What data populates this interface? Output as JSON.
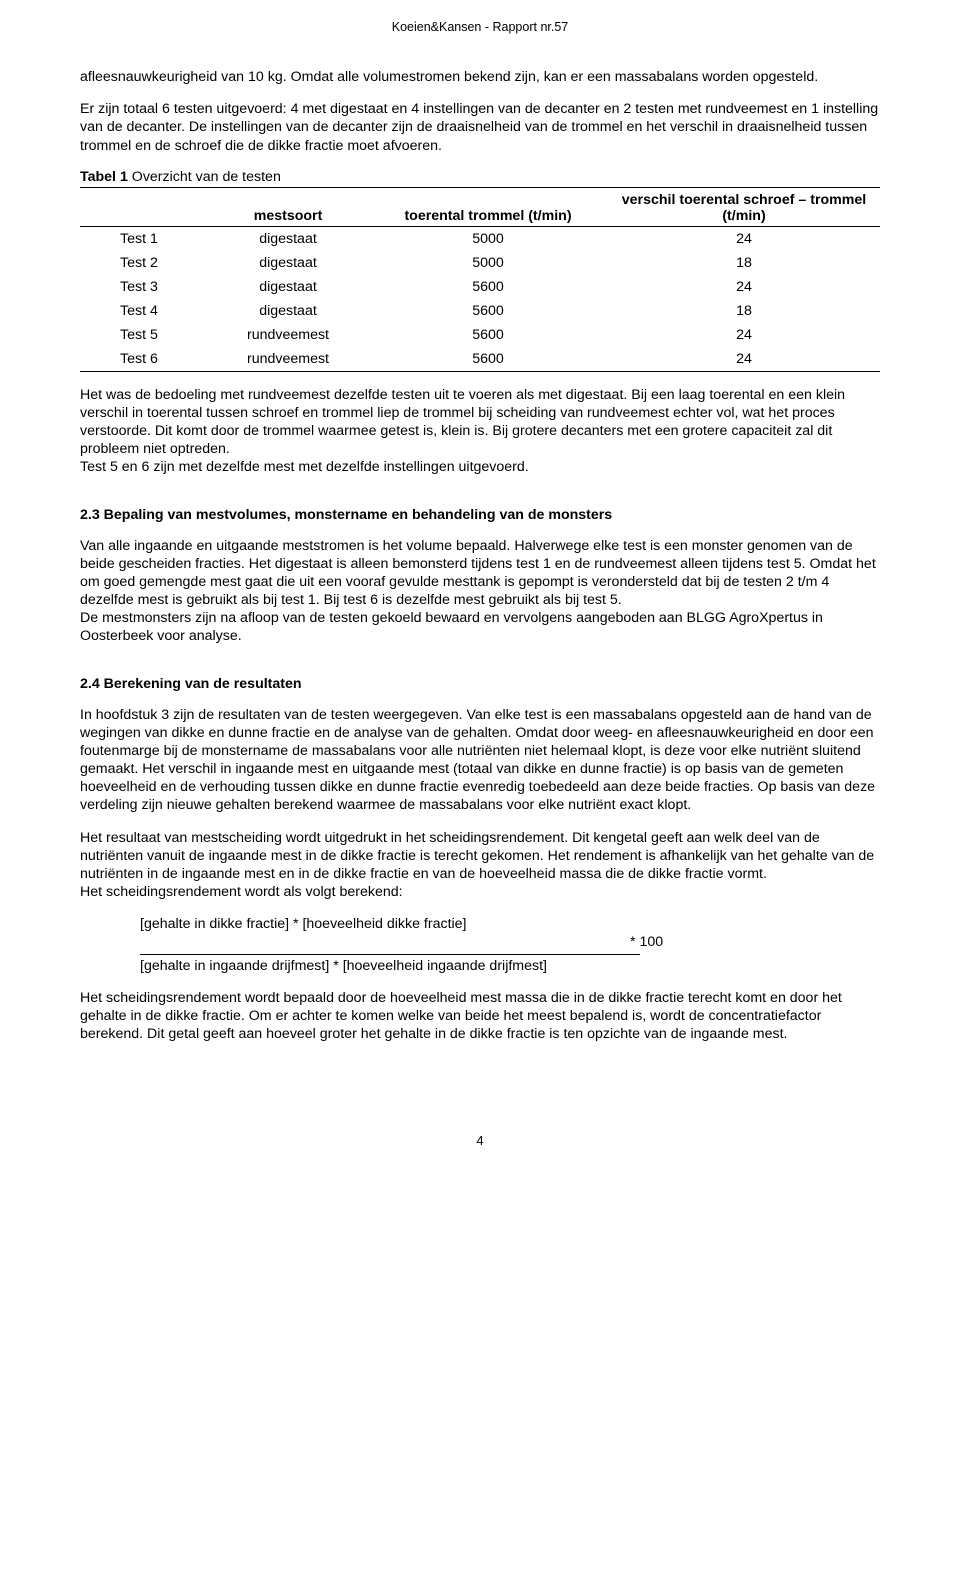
{
  "header": "Koeien&Kansen - Rapport nr.57",
  "para1": "afleesnauwkeurigheid van 10 kg. Omdat alle volumestromen bekend zijn, kan er een massabalans worden opgesteld.",
  "para2": "Er zijn totaal 6 testen uitgevoerd: 4 met digestaat en 4 instellingen van de decanter en 2 testen met rundveemest en 1 instelling van de decanter. De instellingen van de decanter zijn de draaisnelheid van de trommel en het verschil in draaisnelheid tussen trommel en de schroef die de dikke fractie moet afvoeren.",
  "table_caption_bold": "Tabel 1",
  "table_caption_rest": " Overzicht van de testen",
  "table": {
    "columns": [
      "",
      "mestsoort",
      "toerental trommel (t/min)",
      "verschil toerental schroef – trommel (t/min)"
    ],
    "col_widths": [
      "16%",
      "20%",
      "30%",
      "34%"
    ],
    "rows": [
      [
        "Test 1",
        "digestaat",
        "5000",
        "24"
      ],
      [
        "Test 2",
        "digestaat",
        "5000",
        "18"
      ],
      [
        "Test 3",
        "digestaat",
        "5600",
        "24"
      ],
      [
        "Test 4",
        "digestaat",
        "5600",
        "18"
      ],
      [
        "Test 5",
        "rundveemest",
        "5600",
        "24"
      ],
      [
        "Test 6",
        "rundveemest",
        "5600",
        "24"
      ]
    ]
  },
  "para3": "Het was de bedoeling met rundveemest dezelfde testen uit te voeren als met digestaat. Bij een laag toerental en een klein verschil in toerental tussen schroef en trommel liep de trommel bij scheiding van rundveemest echter vol, wat het proces verstoorde. Dit komt door de trommel waarmee getest is, klein is. Bij grotere decanters met een grotere capaciteit zal dit probleem niet optreden.\nTest 5 en 6 zijn met dezelfde mest met dezelfde instellingen uitgevoerd.",
  "section23": "2.3  Bepaling van mestvolumes, monstername en behandeling van de monsters",
  "para4": "Van alle ingaande en uitgaande meststromen is het volume bepaald. Halverwege elke test is een monster genomen van de beide gescheiden fracties. Het digestaat is alleen bemonsterd tijdens test 1 en de rundveemest alleen tijdens test 5. Omdat het om goed gemengde mest gaat die uit een vooraf gevulde mesttank is gepompt is verondersteld dat bij de testen 2 t/m 4 dezelfde mest is gebruikt als bij test 1. Bij test 6 is dezelfde mest gebruikt als bij test 5.\nDe mestmonsters zijn na afloop van de testen gekoeld bewaard en vervolgens aangeboden aan BLGG AgroXpertus in Oosterbeek voor analyse.",
  "section24": "2.4  Berekening van de resultaten",
  "para5": "In hoofdstuk 3 zijn de resultaten van de testen weergegeven. Van elke test is een massabalans opgesteld aan de hand van de wegingen van dikke en dunne fractie en de analyse van de gehalten. Omdat door weeg- en afleesnauwkeurigheid en door een foutenmarge bij de monstername de massabalans voor alle nutriënten niet helemaal klopt, is deze voor elke nutriënt sluitend gemaakt. Het verschil in ingaande mest en uitgaande mest (totaal van dikke en dunne fractie) is op basis van de gemeten hoeveelheid en de verhouding tussen dikke en dunne fractie evenredig toebedeeld aan deze beide fracties. Op basis van deze verdeling zijn nieuwe gehalten berekend waarmee de massabalans voor elke nutriënt exact klopt.",
  "para6": "Het resultaat van mestscheiding wordt uitgedrukt in het scheidingsrendement. Dit kengetal geeft aan welk deel van de nutriënten vanuit de ingaande mest in de dikke fractie is terecht gekomen. Het rendement is afhankelijk van het gehalte van de nutriënten in de ingaande mest en in de dikke fractie en van de hoeveelheid massa die de dikke fractie vormt.\nHet scheidingsrendement wordt als volgt berekend:",
  "formula": {
    "top": "[gehalte in dikke fractie] * [hoeveelheid dikke fractie]",
    "mult": "* 100",
    "bottom": "[gehalte in ingaande drijfmest] * [hoeveelheid ingaande drijfmest]"
  },
  "para7": "Het scheidingsrendement wordt bepaald door de hoeveelheid mest massa die in de dikke fractie terecht komt en door het gehalte in de dikke fractie. Om er achter te komen welke van beide het meest bepalend is, wordt de concentratiefactor berekend. Dit getal geeft aan hoeveel groter het gehalte in de dikke fractie is ten opzichte van de ingaande mest.",
  "page_number": "4"
}
